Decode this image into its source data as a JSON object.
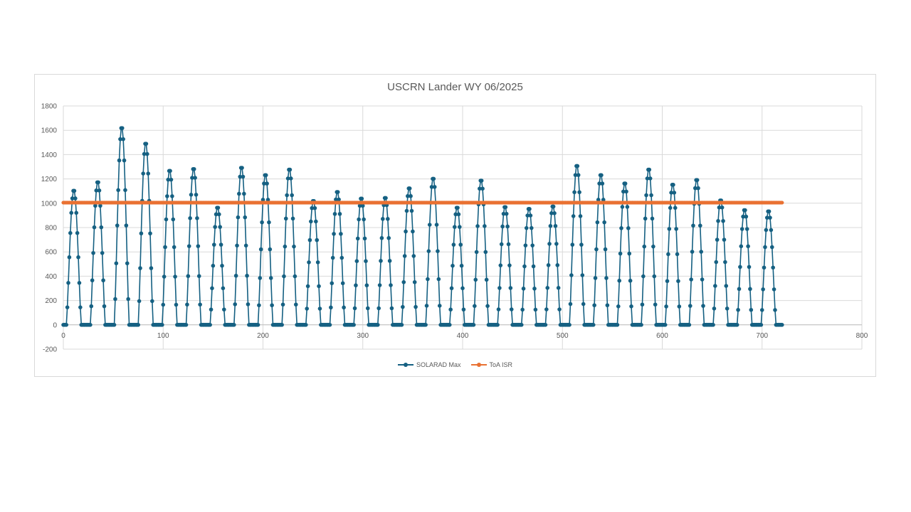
{
  "chart_data": {
    "type": "line",
    "title": "USCRN Lander WY 06/2025",
    "xlabel": "",
    "ylabel": "",
    "xlim": [
      0,
      800
    ],
    "ylim": [
      -200,
      1800
    ],
    "x_ticks": [
      0,
      100,
      200,
      300,
      400,
      500,
      600,
      700,
      800
    ],
    "y_ticks": [
      -200,
      0,
      200,
      400,
      600,
      800,
      1000,
      1200,
      1400,
      1600,
      1800
    ],
    "grid": true,
    "legend": "bottom",
    "series": [
      {
        "name": "SOLARAD Max",
        "color": "#156082",
        "marker": "circle",
        "daily_peaks": [
          1110,
          1180,
          1630,
          1500,
          1275,
          1290,
          970,
          1300,
          1240,
          1285,
          1025,
          1100,
          1045,
          1050,
          1130,
          1210,
          970,
          1195,
          975,
          960,
          980,
          1315,
          1240,
          1170,
          1285,
          1160,
          1200,
          1030,
          950,
          940
        ],
        "x_start": 0,
        "x_end": 720,
        "points_per_day": 24
      },
      {
        "name": "ToA ISR",
        "color": "#E97132",
        "marker": "circle",
        "x": [
          0,
          720
        ],
        "y": [
          1005,
          1005
        ]
      }
    ]
  }
}
